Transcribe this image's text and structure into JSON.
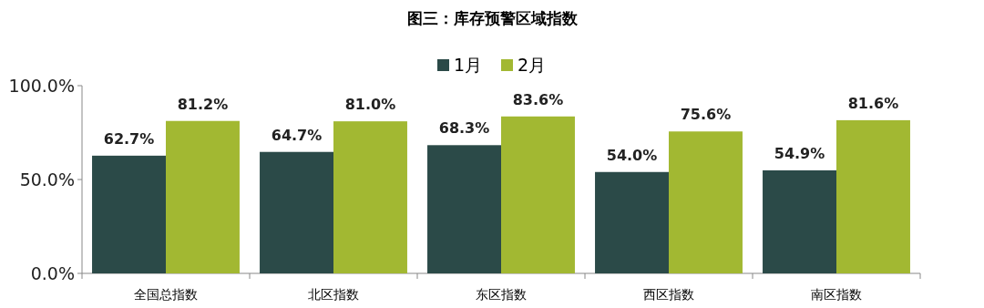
{
  "chart_data": {
    "type": "bar",
    "title": "图三：库存预警区域指数",
    "categories": [
      "全国总指数",
      "北区指数",
      "东区指数",
      "西区指数",
      "南区指数"
    ],
    "series": [
      {
        "name": "1月",
        "color": "#2b4a48",
        "values": [
          62.7,
          64.7,
          68.3,
          54.0,
          54.9
        ],
        "value_labels": [
          "62.7%",
          "64.7%",
          "68.3%",
          "54.0%",
          "54.9%"
        ]
      },
      {
        "name": "2月",
        "color": "#a2b832",
        "values": [
          81.2,
          81.0,
          83.6,
          75.6,
          81.6
        ],
        "value_labels": [
          "81.2%",
          "81.0%",
          "83.6%",
          "75.6%",
          "81.6%"
        ]
      }
    ],
    "ylim": [
      0,
      100
    ],
    "yticks": [
      {
        "value": 0,
        "label": "0.0%"
      },
      {
        "value": 50,
        "label": "50.0%"
      },
      {
        "value": 100,
        "label": "100.0%"
      }
    ],
    "legend": "top",
    "grid": false
  }
}
